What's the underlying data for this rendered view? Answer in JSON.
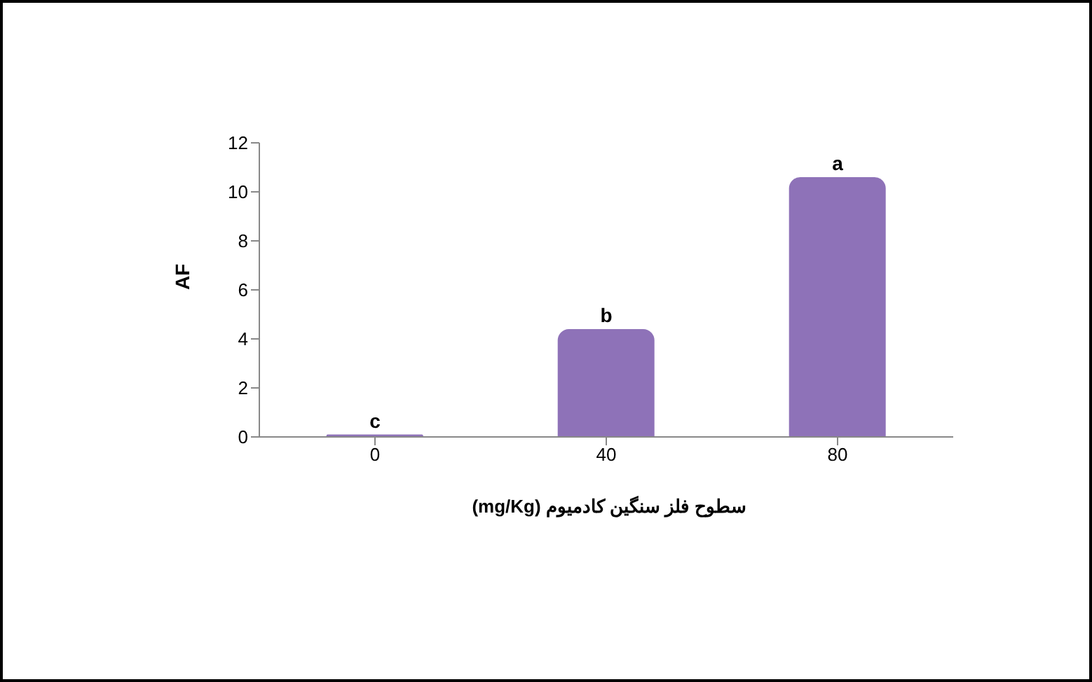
{
  "chart_data": {
    "type": "bar",
    "categories": [
      "0",
      "40",
      "80"
    ],
    "values": [
      0.1,
      4.4,
      10.6
    ],
    "color": "#8e72b8",
    "ylim": [
      0,
      12
    ],
    "yticks": [
      0,
      2,
      4,
      6,
      8,
      10,
      12
    ],
    "ylabel": "AF",
    "xlabel": "سطوح فلز سنگین کادمیوم (mg/Kg)",
    "grid": false,
    "legend": false,
    "annotations": [
      {
        "text": "c",
        "x": "0",
        "y": 0.1
      },
      {
        "text": "b",
        "x": "40",
        "y": 4.4
      },
      {
        "text": "a",
        "x": "80",
        "y": 10.6
      }
    ]
  }
}
